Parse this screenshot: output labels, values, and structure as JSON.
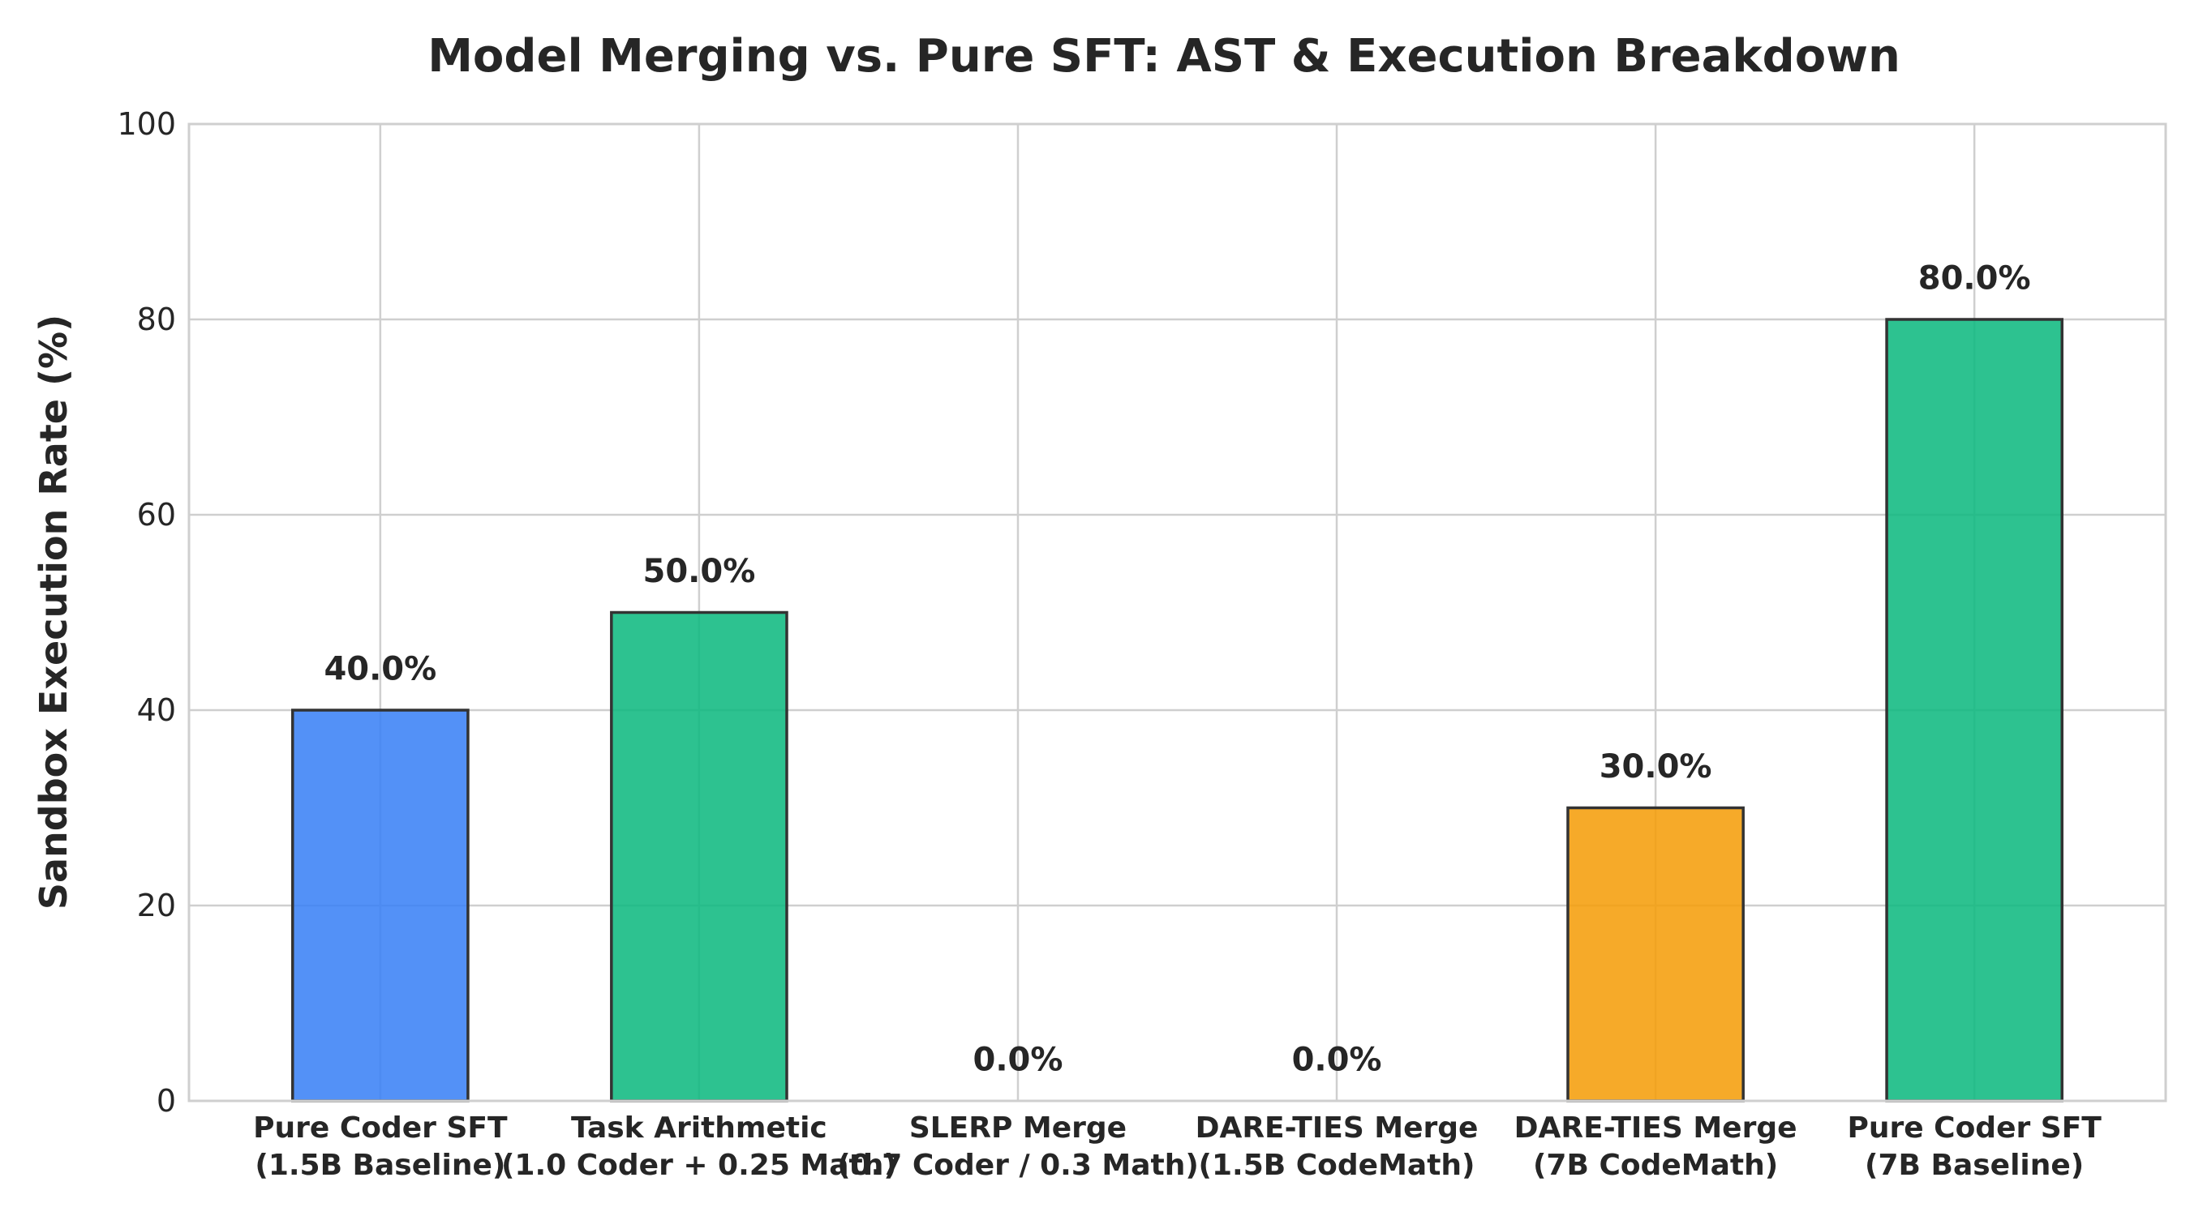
{
  "chart_data": {
    "type": "bar",
    "title": "Model Merging vs. Pure SFT: AST & Execution Breakdown",
    "xlabel": "",
    "ylabel": "Sandbox Execution Rate (%)",
    "ylim": [
      0,
      100
    ],
    "yticks": [
      0,
      20,
      40,
      60,
      80,
      100
    ],
    "grid": true,
    "categories": [
      [
        "Pure Coder SFT",
        "(1.5B Baseline)"
      ],
      [
        "Task Arithmetic",
        "(1.0 Coder + 0.25 Math)"
      ],
      [
        "SLERP Merge",
        "(0.7 Coder / 0.3 Math)"
      ],
      [
        "DARE-TIES Merge",
        "(1.5B CodeMath)"
      ],
      [
        "DARE-TIES Merge",
        "(7B CodeMath)"
      ],
      [
        "Pure Coder SFT",
        "(7B Baseline)"
      ]
    ],
    "values": [
      40.0,
      50.0,
      0.0,
      0.0,
      30.0,
      80.0
    ],
    "value_labels": [
      "40.0%",
      "50.0%",
      "0.0%",
      "0.0%",
      "30.0%",
      "80.0%"
    ],
    "colors": [
      "#3b82f6",
      "#10b981",
      "#10b981",
      "#10b981",
      "#f59e0b",
      "#10b981"
    ]
  }
}
